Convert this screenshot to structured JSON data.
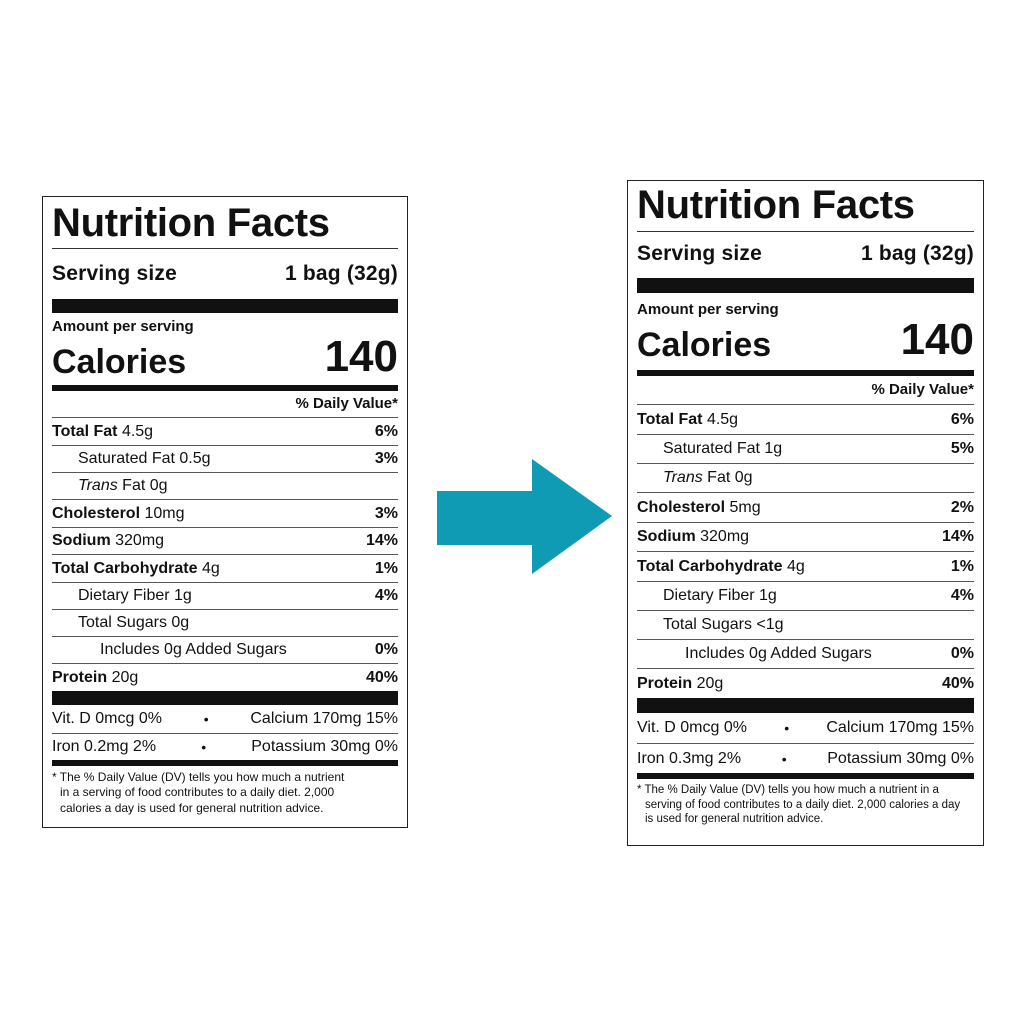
{
  "labels": [
    {
      "title": "Nutrition Facts",
      "serving_label": "Serving size",
      "serving_value": "1 bag (32g)",
      "amount_per_serving": "Amount per serving",
      "calories_label": "Calories",
      "calories_value": "140",
      "daily_value_header": "% Daily Value*",
      "nutrients": {
        "total_fat": {
          "name": "Total Fat",
          "amount": "4.5g",
          "dv": "6%"
        },
        "saturated_fat": {
          "name": "Saturated Fat",
          "amount": "0.5g",
          "dv": "3%"
        },
        "trans_fat": {
          "name_italic": "Trans",
          "name": "Fat",
          "amount": "0g",
          "dv": ""
        },
        "cholesterol": {
          "name": "Cholesterol",
          "amount": "10mg",
          "dv": "3%"
        },
        "sodium": {
          "name": "Sodium",
          "amount": "320mg",
          "dv": "14%"
        },
        "total_carb": {
          "name": "Total Carbohydrate",
          "amount": "4g",
          "dv": "1%"
        },
        "fiber": {
          "name": "Dietary Fiber",
          "amount": "1g",
          "dv": "4%"
        },
        "total_sugars": {
          "name": "Total Sugars",
          "amount": "0g",
          "dv": ""
        },
        "added_sugars": {
          "text": "Includes 0g Added Sugars",
          "dv": "0%"
        },
        "protein": {
          "name": "Protein",
          "amount": "20g",
          "dv": "40%"
        }
      },
      "vitamins": {
        "vit_d": "Vit. D 0mcg 0%",
        "calcium": "Calcium 170mg 15%",
        "iron": "Iron 0.2mg 2%",
        "potassium": "Potassium 30mg 0%",
        "separator": "•"
      },
      "footnote_lines": [
        "* The % Daily Value (DV) tells you how much a nutrient",
        "in a serving of food contributes to a daily diet. 2,000",
        "calories a day is used for general nutrition advice."
      ]
    },
    {
      "title": "Nutrition Facts",
      "serving_label": "Serving size",
      "serving_value": "1 bag (32g)",
      "amount_per_serving": "Amount per serving",
      "calories_label": "Calories",
      "calories_value": "140",
      "daily_value_header": "% Daily Value*",
      "nutrients": {
        "total_fat": {
          "name": "Total Fat",
          "amount": "4.5g",
          "dv": "6%"
        },
        "saturated_fat": {
          "name": "Saturated Fat",
          "amount": "1g",
          "dv": "5%"
        },
        "trans_fat": {
          "name_italic": "Trans",
          "name": "Fat",
          "amount": "0g",
          "dv": ""
        },
        "cholesterol": {
          "name": "Cholesterol",
          "amount": "5mg",
          "dv": "2%"
        },
        "sodium": {
          "name": "Sodium",
          "amount": "320mg",
          "dv": "14%"
        },
        "total_carb": {
          "name": "Total Carbohydrate",
          "amount": "4g",
          "dv": "1%"
        },
        "fiber": {
          "name": "Dietary Fiber",
          "amount": "1g",
          "dv": "4%"
        },
        "total_sugars": {
          "name": "Total Sugars",
          "amount": "<1g",
          "dv": ""
        },
        "added_sugars": {
          "text": "Includes 0g Added Sugars",
          "dv": "0%"
        },
        "protein": {
          "name": "Protein",
          "amount": "20g",
          "dv": "40%"
        }
      },
      "vitamins": {
        "vit_d": "Vit. D 0mcg 0%",
        "calcium": "Calcium 170mg 15%",
        "iron": "Iron 0.3mg 2%",
        "potassium": "Potassium 30mg 0%",
        "separator": "•"
      },
      "footnote_lines": [
        "* The % Daily Value (DV) tells you how much a nutrient in a",
        "serving of food contributes to a daily diet. 2,000 calories a day",
        "is used for general nutrition advice."
      ]
    }
  ],
  "arrow": {
    "icon": "right-arrow-icon",
    "color": "#0e9bb3"
  }
}
